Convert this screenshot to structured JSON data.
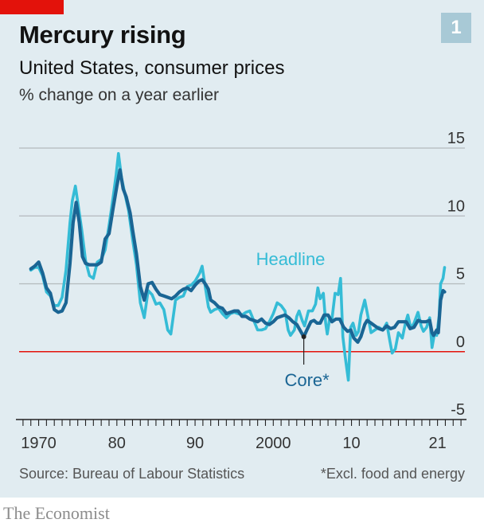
{
  "header": {
    "title": "Mercury rising",
    "subtitle": "United States, consumer prices",
    "unit": "% change on a year earlier",
    "chart_number": "1"
  },
  "footer": {
    "source": "Source: Bureau of Labour Statistics",
    "footnote": "*Excl. food and energy",
    "brand": "The Economist"
  },
  "colors": {
    "background": "#e1ecf1",
    "headline": "#35bcd6",
    "core": "#1a6594",
    "zero_line": "#e3120b",
    "grid": "#b4b9bc",
    "brand_red": "#e3120b"
  },
  "chart_data": {
    "type": "line",
    "title": "Mercury rising",
    "ylabel": "% change on a year earlier",
    "xlim": [
      1967.5,
      2024.5
    ],
    "ylim": [
      -5,
      15
    ],
    "y_ticks": [
      15,
      10,
      5,
      0,
      -5
    ],
    "x_tick_labels": [
      {
        "x": 1970,
        "label": "1970"
      },
      {
        "x": 1980,
        "label": "80"
      },
      {
        "x": 1990,
        "label": "90"
      },
      {
        "x": 2000,
        "label": "2000"
      },
      {
        "x": 2010,
        "label": "10"
      },
      {
        "x": 2021,
        "label": "21"
      }
    ],
    "grid": true,
    "series": [
      {
        "name": "Headline",
        "points": [
          [
            1969.0,
            6.0
          ],
          [
            1969.5,
            6.2
          ],
          [
            1970.0,
            6.2
          ],
          [
            1970.5,
            5.6
          ],
          [
            1971.0,
            4.4
          ],
          [
            1971.5,
            4.1
          ],
          [
            1972.0,
            3.4
          ],
          [
            1972.5,
            3.4
          ],
          [
            1973.0,
            4.0
          ],
          [
            1973.5,
            6.0
          ],
          [
            1974.0,
            9.5
          ],
          [
            1974.3,
            11.1
          ],
          [
            1974.7,
            12.2
          ],
          [
            1975.0,
            11.0
          ],
          [
            1975.5,
            9.0
          ],
          [
            1976.0,
            6.7
          ],
          [
            1976.5,
            5.6
          ],
          [
            1977.0,
            5.4
          ],
          [
            1977.5,
            6.6
          ],
          [
            1978.0,
            6.8
          ],
          [
            1978.5,
            7.5
          ],
          [
            1979.0,
            9.3
          ],
          [
            1979.5,
            11.3
          ],
          [
            1979.9,
            13.0
          ],
          [
            1980.2,
            14.6
          ],
          [
            1980.6,
            12.8
          ],
          [
            1981.0,
            11.7
          ],
          [
            1981.5,
            10.4
          ],
          [
            1982.0,
            8.3
          ],
          [
            1982.5,
            6.4
          ],
          [
            1983.0,
            3.6
          ],
          [
            1983.5,
            2.5
          ],
          [
            1984.0,
            4.5
          ],
          [
            1984.5,
            4.2
          ],
          [
            1985.0,
            3.5
          ],
          [
            1985.5,
            3.6
          ],
          [
            1986.0,
            3.1
          ],
          [
            1986.5,
            1.6
          ],
          [
            1986.9,
            1.3
          ],
          [
            1987.5,
            3.8
          ],
          [
            1988.0,
            4.0
          ],
          [
            1988.5,
            4.1
          ],
          [
            1989.0,
            4.8
          ],
          [
            1989.5,
            4.9
          ],
          [
            1990.0,
            5.2
          ],
          [
            1990.6,
            5.8
          ],
          [
            1990.9,
            6.3
          ],
          [
            1991.3,
            4.8
          ],
          [
            1991.7,
            3.3
          ],
          [
            1992.0,
            2.9
          ],
          [
            1992.5,
            3.1
          ],
          [
            1993.0,
            3.2
          ],
          [
            1993.5,
            2.8
          ],
          [
            1994.0,
            2.5
          ],
          [
            1994.5,
            2.8
          ],
          [
            1995.0,
            2.9
          ],
          [
            1995.5,
            2.8
          ],
          [
            1996.0,
            2.7
          ],
          [
            1996.5,
            2.9
          ],
          [
            1997.0,
            3.0
          ],
          [
            1997.5,
            2.3
          ],
          [
            1998.0,
            1.6
          ],
          [
            1998.5,
            1.6
          ],
          [
            1999.0,
            1.7
          ],
          [
            1999.5,
            2.2
          ],
          [
            2000.0,
            2.8
          ],
          [
            2000.5,
            3.6
          ],
          [
            2001.0,
            3.4
          ],
          [
            2001.5,
            3.0
          ],
          [
            2001.9,
            1.6
          ],
          [
            2002.2,
            1.2
          ],
          [
            2002.7,
            1.6
          ],
          [
            2003.0,
            2.6
          ],
          [
            2003.3,
            3.0
          ],
          [
            2003.7,
            2.3
          ],
          [
            2004.0,
            1.9
          ],
          [
            2004.5,
            3.0
          ],
          [
            2005.0,
            3.0
          ],
          [
            2005.4,
            3.5
          ],
          [
            2005.7,
            4.7
          ],
          [
            2006.0,
            3.9
          ],
          [
            2006.4,
            4.3
          ],
          [
            2006.7,
            2.1
          ],
          [
            2006.9,
            1.3
          ],
          [
            2007.2,
            2.4
          ],
          [
            2007.5,
            2.4
          ],
          [
            2007.9,
            4.3
          ],
          [
            2008.3,
            4.2
          ],
          [
            2008.6,
            5.4
          ],
          [
            2008.9,
            1.1
          ],
          [
            2009.2,
            -0.4
          ],
          [
            2009.6,
            -2.1
          ],
          [
            2009.9,
            1.8
          ],
          [
            2010.2,
            2.1
          ],
          [
            2010.6,
            1.2
          ],
          [
            2010.9,
            1.5
          ],
          [
            2011.2,
            2.7
          ],
          [
            2011.7,
            3.8
          ],
          [
            2012.0,
            2.9
          ],
          [
            2012.5,
            1.4
          ],
          [
            2013.0,
            1.6
          ],
          [
            2013.5,
            1.8
          ],
          [
            2014.0,
            1.6
          ],
          [
            2014.5,
            2.1
          ],
          [
            2014.9,
            0.8
          ],
          [
            2015.2,
            -0.1
          ],
          [
            2015.6,
            0.2
          ],
          [
            2016.0,
            1.4
          ],
          [
            2016.5,
            1.0
          ],
          [
            2016.9,
            2.1
          ],
          [
            2017.2,
            2.7
          ],
          [
            2017.6,
            1.7
          ],
          [
            2018.0,
            2.1
          ],
          [
            2018.5,
            2.9
          ],
          [
            2018.9,
            1.9
          ],
          [
            2019.2,
            1.5
          ],
          [
            2019.6,
            1.8
          ],
          [
            2020.0,
            2.5
          ],
          [
            2020.3,
            0.3
          ],
          [
            2020.6,
            1.3
          ],
          [
            2020.9,
            1.2
          ],
          [
            2021.2,
            2.6
          ],
          [
            2021.4,
            5.0
          ],
          [
            2021.7,
            5.4
          ],
          [
            2021.9,
            6.2
          ]
        ]
      },
      {
        "name": "Core*",
        "points": [
          [
            1969.0,
            6.1
          ],
          [
            1969.5,
            6.3
          ],
          [
            1970.0,
            6.6
          ],
          [
            1970.5,
            5.8
          ],
          [
            1971.0,
            4.7
          ],
          [
            1971.5,
            4.3
          ],
          [
            1972.0,
            3.1
          ],
          [
            1972.5,
            2.9
          ],
          [
            1973.0,
            3.0
          ],
          [
            1973.5,
            3.6
          ],
          [
            1974.0,
            6.5
          ],
          [
            1974.4,
            9.5
          ],
          [
            1974.8,
            11.0
          ],
          [
            1975.2,
            9.5
          ],
          [
            1975.6,
            7.0
          ],
          [
            1976.0,
            6.5
          ],
          [
            1976.5,
            6.4
          ],
          [
            1977.0,
            6.4
          ],
          [
            1977.5,
            6.4
          ],
          [
            1978.0,
            6.6
          ],
          [
            1978.5,
            8.3
          ],
          [
            1979.0,
            8.7
          ],
          [
            1979.5,
            10.5
          ],
          [
            1980.0,
            12.2
          ],
          [
            1980.4,
            13.4
          ],
          [
            1980.8,
            12.0
          ],
          [
            1981.2,
            11.4
          ],
          [
            1981.7,
            10.2
          ],
          [
            1982.0,
            9.0
          ],
          [
            1982.5,
            7.2
          ],
          [
            1983.0,
            4.8
          ],
          [
            1983.5,
            3.8
          ],
          [
            1984.0,
            5.0
          ],
          [
            1984.5,
            5.1
          ],
          [
            1985.0,
            4.6
          ],
          [
            1985.5,
            4.2
          ],
          [
            1986.0,
            4.1
          ],
          [
            1986.5,
            4.0
          ],
          [
            1987.0,
            3.9
          ],
          [
            1987.5,
            4.1
          ],
          [
            1988.0,
            4.4
          ],
          [
            1988.5,
            4.6
          ],
          [
            1989.0,
            4.7
          ],
          [
            1989.5,
            4.5
          ],
          [
            1990.0,
            4.9
          ],
          [
            1990.5,
            5.2
          ],
          [
            1990.9,
            5.3
          ],
          [
            1991.3,
            5.0
          ],
          [
            1991.7,
            4.6
          ],
          [
            1992.0,
            3.8
          ],
          [
            1992.5,
            3.6
          ],
          [
            1993.0,
            3.3
          ],
          [
            1993.5,
            3.2
          ],
          [
            1994.0,
            2.8
          ],
          [
            1994.5,
            2.9
          ],
          [
            1995.0,
            3.0
          ],
          [
            1995.5,
            3.0
          ],
          [
            1996.0,
            2.6
          ],
          [
            1996.5,
            2.6
          ],
          [
            1997.0,
            2.4
          ],
          [
            1997.5,
            2.3
          ],
          [
            1998.0,
            2.2
          ],
          [
            1998.5,
            2.4
          ],
          [
            1999.0,
            2.1
          ],
          [
            1999.5,
            2.0
          ],
          [
            2000.0,
            2.2
          ],
          [
            2000.5,
            2.5
          ],
          [
            2001.0,
            2.6
          ],
          [
            2001.5,
            2.7
          ],
          [
            2002.0,
            2.5
          ],
          [
            2002.5,
            2.2
          ],
          [
            2003.0,
            2.0
          ],
          [
            2003.5,
            1.5
          ],
          [
            2003.9,
            1.1
          ],
          [
            2004.3,
            1.6
          ],
          [
            2004.8,
            2.2
          ],
          [
            2005.2,
            2.3
          ],
          [
            2005.6,
            2.1
          ],
          [
            2006.0,
            2.1
          ],
          [
            2006.5,
            2.7
          ],
          [
            2007.0,
            2.7
          ],
          [
            2007.5,
            2.2
          ],
          [
            2008.0,
            2.4
          ],
          [
            2008.5,
            2.4
          ],
          [
            2009.0,
            1.8
          ],
          [
            2009.5,
            1.5
          ],
          [
            2009.9,
            1.6
          ],
          [
            2010.3,
            1.0
          ],
          [
            2010.8,
            0.7
          ],
          [
            2011.2,
            1.1
          ],
          [
            2011.7,
            2.0
          ],
          [
            2012.0,
            2.3
          ],
          [
            2012.5,
            2.1
          ],
          [
            2013.0,
            1.9
          ],
          [
            2013.5,
            1.7
          ],
          [
            2014.0,
            1.6
          ],
          [
            2014.5,
            1.9
          ],
          [
            2015.0,
            1.7
          ],
          [
            2015.5,
            1.8
          ],
          [
            2016.0,
            2.2
          ],
          [
            2016.5,
            2.2
          ],
          [
            2017.0,
            2.2
          ],
          [
            2017.5,
            1.7
          ],
          [
            2018.0,
            1.8
          ],
          [
            2018.5,
            2.3
          ],
          [
            2019.0,
            2.2
          ],
          [
            2019.5,
            2.2
          ],
          [
            2020.0,
            2.3
          ],
          [
            2020.3,
            1.4
          ],
          [
            2020.5,
            1.2
          ],
          [
            2020.9,
            1.6
          ],
          [
            2021.1,
            1.4
          ],
          [
            2021.4,
            3.8
          ],
          [
            2021.7,
            4.5
          ],
          [
            2021.9,
            4.4
          ]
        ]
      }
    ]
  }
}
